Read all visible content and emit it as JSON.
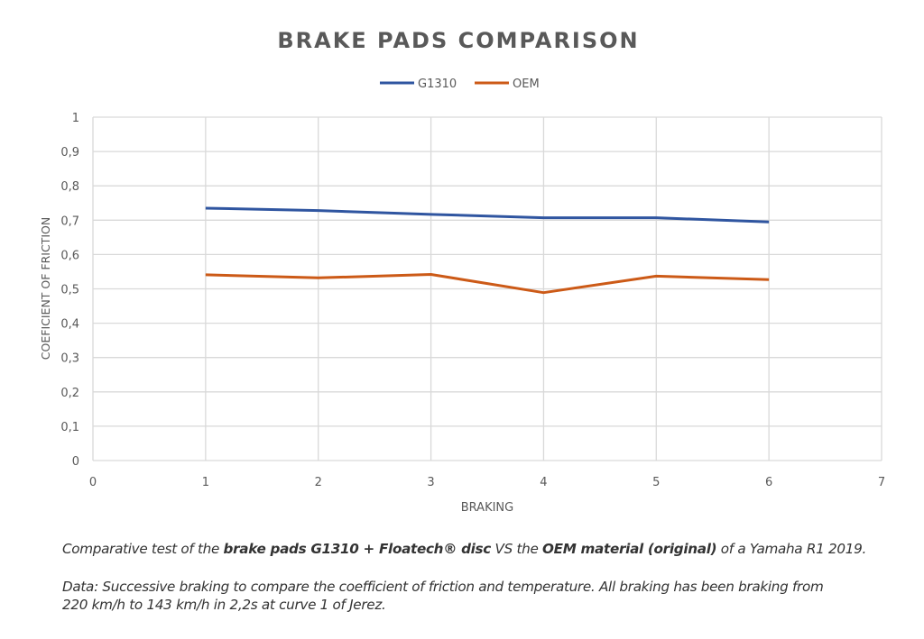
{
  "chart_data": {
    "type": "line",
    "title": "BRAKE PADS COMPARISON",
    "xlabel": "BRAKING",
    "ylabel": "COEFICIENT OF FRICTION",
    "xlim": [
      0,
      7
    ],
    "ylim": [
      0,
      1
    ],
    "x_ticks": [
      "0",
      "1",
      "2",
      "3",
      "4",
      "5",
      "6",
      "7"
    ],
    "y_ticks": [
      "0",
      "0,1",
      "0,2",
      "0,3",
      "0,4",
      "0,5",
      "0,6",
      "0,7",
      "0,8",
      "0,9",
      "1"
    ],
    "grid": true,
    "legend_position": "top",
    "x": [
      1,
      2,
      3,
      4,
      5,
      6
    ],
    "series": [
      {
        "name": "G1310",
        "color": "#2f55a0",
        "values": [
          0.735,
          0.728,
          0.717,
          0.707,
          0.707,
          0.695
        ]
      },
      {
        "name": "OEM",
        "color": "#cc5a17",
        "values": [
          0.541,
          0.532,
          0.542,
          0.489,
          0.537,
          0.527
        ]
      }
    ]
  },
  "caption": {
    "line1": [
      {
        "text": "Comparative test of the ",
        "bold": false
      },
      {
        "text": "brake pads G1310 + Floatech® disc",
        "bold": true
      },
      {
        "text": " VS the ",
        "bold": false
      },
      {
        "text": "OEM material (original)",
        "bold": true
      },
      {
        "text": " of a Yamaha R1 2019.",
        "bold": false
      }
    ],
    "line2": "Data: Successive braking to compare the coefficient of friction and temperature. All braking has been braking from",
    "line3": "220 km/h to 143 km/h in 2,2s at curve 1 of Jerez."
  }
}
